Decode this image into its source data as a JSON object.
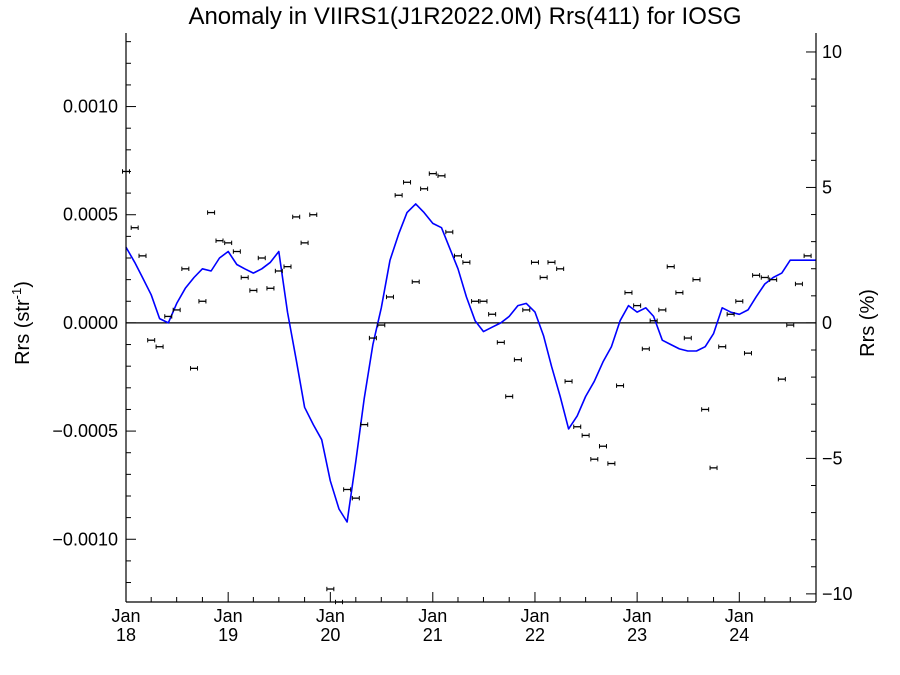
{
  "chart_data": {
    "type": "scatter",
    "title": "Anomaly in VIIRS1(J1R2022.0M) Rrs(411) for IOSG",
    "ylabel": "Rrs (str",
    "ylabel_sup": "-1",
    "ylabel_close": ")",
    "y2label": "Rrs (%)",
    "xlim": [
      "2018-01-01",
      "2024-10-01"
    ],
    "ylim": [
      -0.00129,
      0.00134
    ],
    "y2lim": [
      -10.3,
      10.7
    ],
    "xticks": [
      {
        "date": "2018-01-01",
        "month": "Jan",
        "year": "18"
      },
      {
        "date": "2019-01-01",
        "month": "Jan",
        "year": "19"
      },
      {
        "date": "2020-01-01",
        "month": "Jan",
        "year": "20"
      },
      {
        "date": "2021-01-01",
        "month": "Jan",
        "year": "21"
      },
      {
        "date": "2022-01-01",
        "month": "Jan",
        "year": "22"
      },
      {
        "date": "2023-01-01",
        "month": "Jan",
        "year": "23"
      },
      {
        "date": "2024-01-01",
        "month": "Jan",
        "year": "24"
      }
    ],
    "yticks": [
      {
        "value": 0.001,
        "label": "0.0010"
      },
      {
        "value": 0.0005,
        "label": "0.0005"
      },
      {
        "value": 0.0,
        "label": "0.0000"
      },
      {
        "value": -0.0005,
        "label": "−0.0005"
      },
      {
        "value": -0.001,
        "label": "−0.0010"
      }
    ],
    "y2ticks": [
      {
        "value": 10,
        "label": "10"
      },
      {
        "value": 5,
        "label": "5"
      },
      {
        "value": 0,
        "label": "0"
      },
      {
        "value": -5,
        "label": "−5"
      },
      {
        "value": -10,
        "label": "−10"
      }
    ],
    "grid": false,
    "zero_line": true,
    "colors": {
      "points": "#000000",
      "line": "#0000ff",
      "axes": "#000000"
    },
    "series": [
      {
        "kind": "points_with_errorbars",
        "x": [
          "2018-01-01",
          "2018-02-01",
          "2018-03-01",
          "2018-04-01",
          "2018-05-01",
          "2018-06-01",
          "2018-07-01",
          "2018-08-01",
          "2018-09-01",
          "2018-10-01",
          "2018-11-01",
          "2018-12-01",
          "2019-01-01",
          "2019-02-01",
          "2019-03-01",
          "2019-04-01",
          "2019-05-01",
          "2019-06-01",
          "2019-07-01",
          "2019-08-01",
          "2019-09-01",
          "2019-10-01",
          "2019-11-01",
          "2020-01-01",
          "2020-02-01",
          "2020-03-01",
          "2020-04-01",
          "2020-05-01",
          "2020-06-01",
          "2020-07-01",
          "2020-08-01",
          "2020-09-01",
          "2020-10-01",
          "2020-11-01",
          "2020-12-01",
          "2021-01-01",
          "2021-02-01",
          "2021-03-01",
          "2021-04-01",
          "2021-05-01",
          "2021-06-01",
          "2021-07-01",
          "2021-08-01",
          "2021-09-01",
          "2021-10-01",
          "2021-11-01",
          "2021-12-01",
          "2022-01-01",
          "2022-02-01",
          "2022-03-01",
          "2022-04-01",
          "2022-05-01",
          "2022-06-01",
          "2022-07-01",
          "2022-08-01",
          "2022-09-01",
          "2022-10-01",
          "2022-11-01",
          "2022-12-01",
          "2023-01-01",
          "2023-02-01",
          "2023-03-01",
          "2023-04-01",
          "2023-05-01",
          "2023-06-01",
          "2023-07-01",
          "2023-08-01",
          "2023-09-01",
          "2023-10-01",
          "2023-11-01",
          "2023-12-01",
          "2024-01-01",
          "2024-02-01",
          "2024-03-01",
          "2024-04-01",
          "2024-05-01",
          "2024-06-01",
          "2024-07-01",
          "2024-08-01",
          "2024-09-01"
        ],
        "y": [
          0.0007,
          0.00044,
          0.00031,
          -8e-05,
          -0.00011,
          3e-05,
          6e-05,
          0.00025,
          -0.00021,
          0.0001,
          0.00051,
          0.00038,
          0.00037,
          0.00033,
          0.00021,
          0.00015,
          0.0003,
          0.00016,
          0.00024,
          0.00026,
          0.00049,
          0.00037,
          0.0005,
          -0.00123,
          -0.00129,
          -0.00077,
          -0.00081,
          -0.00047,
          -7e-05,
          -1e-05,
          0.00012,
          0.00059,
          0.00065,
          0.00019,
          0.00062,
          0.00069,
          0.00068,
          0.00042,
          0.00031,
          0.00028,
          0.0001,
          0.0001,
          4e-05,
          -9e-05,
          -0.00034,
          -0.00017,
          6e-05,
          0.00028,
          0.00021,
          0.00028,
          0.00025,
          -0.00027,
          -0.00048,
          -0.00052,
          -0.00063,
          -0.00057,
          -0.00065,
          -0.00029,
          0.00014,
          8e-05,
          -0.00012,
          1e-05,
          6e-05,
          0.00026,
          0.00014,
          -7e-05,
          0.0002,
          -0.0004,
          -0.00067,
          -0.00011,
          4e-05,
          0.0001,
          -0.00014,
          0.00022,
          0.00021,
          0.0002,
          -0.00026,
          -1e-05,
          0.00018,
          0.00031
        ],
        "err": 6e-06
      },
      {
        "kind": "line",
        "x": [
          "2018-01-01",
          "2018-02-01",
          "2018-03-01",
          "2018-04-01",
          "2018-05-01",
          "2018-06-01",
          "2018-07-01",
          "2018-08-01",
          "2018-09-01",
          "2018-10-01",
          "2018-11-01",
          "2018-12-01",
          "2019-01-01",
          "2019-02-01",
          "2019-03-01",
          "2019-04-01",
          "2019-05-01",
          "2019-06-01",
          "2019-07-01",
          "2019-08-01",
          "2019-09-01",
          "2019-10-01",
          "2019-11-01",
          "2019-12-01",
          "2020-01-01",
          "2020-02-01",
          "2020-03-01",
          "2020-04-01",
          "2020-05-01",
          "2020-06-01",
          "2020-07-01",
          "2020-08-01",
          "2020-09-01",
          "2020-10-01",
          "2020-11-01",
          "2020-12-01",
          "2021-01-01",
          "2021-02-01",
          "2021-03-01",
          "2021-04-01",
          "2021-05-01",
          "2021-06-01",
          "2021-07-01",
          "2021-08-01",
          "2021-09-01",
          "2021-10-01",
          "2021-11-01",
          "2021-12-01",
          "2022-01-01",
          "2022-02-01",
          "2022-03-01",
          "2022-04-01",
          "2022-05-01",
          "2022-06-01",
          "2022-07-01",
          "2022-08-01",
          "2022-09-01",
          "2022-10-01",
          "2022-11-01",
          "2022-12-01",
          "2023-01-01",
          "2023-02-01",
          "2023-03-01",
          "2023-04-01",
          "2023-05-01",
          "2023-06-01",
          "2023-07-01",
          "2023-08-01",
          "2023-09-01",
          "2023-10-01",
          "2023-11-01",
          "2023-12-01",
          "2024-01-01",
          "2024-02-01",
          "2024-03-01",
          "2024-04-01",
          "2024-05-01",
          "2024-06-01",
          "2024-07-01",
          "2024-08-01",
          "2024-09-01",
          "2024-10-01"
        ],
        "y": [
          0.00035,
          0.00028,
          0.00021,
          0.00013,
          2e-05,
          0.0,
          9e-05,
          0.00016,
          0.00021,
          0.00025,
          0.00024,
          0.0003,
          0.00033,
          0.00027,
          0.00025,
          0.00023,
          0.00025,
          0.00028,
          0.00033,
          5e-05,
          -0.00017,
          -0.00039,
          -0.00047,
          -0.00054,
          -0.00073,
          -0.00086,
          -0.00092,
          -0.00064,
          -0.00035,
          -0.0001,
          7e-05,
          0.00029,
          0.00041,
          0.00051,
          0.00055,
          0.00051,
          0.00046,
          0.00044,
          0.00035,
          0.00025,
          0.00012,
          1e-05,
          -4e-05,
          -2e-05,
          0.0,
          3e-05,
          8e-05,
          9e-05,
          5e-05,
          -6e-05,
          -0.0002,
          -0.00034,
          -0.00049,
          -0.00043,
          -0.00034,
          -0.00027,
          -0.00018,
          -0.00011,
          1e-05,
          8e-05,
          5e-05,
          7e-05,
          3e-05,
          -8e-05,
          -0.0001,
          -0.00012,
          -0.00013,
          -0.00013,
          -0.00011,
          -5e-05,
          7e-05,
          5e-05,
          4e-05,
          6e-05,
          0.00012,
          0.00018,
          0.00021,
          0.00023,
          0.00029,
          0.00029,
          0.00029,
          0.00029
        ]
      }
    ]
  }
}
